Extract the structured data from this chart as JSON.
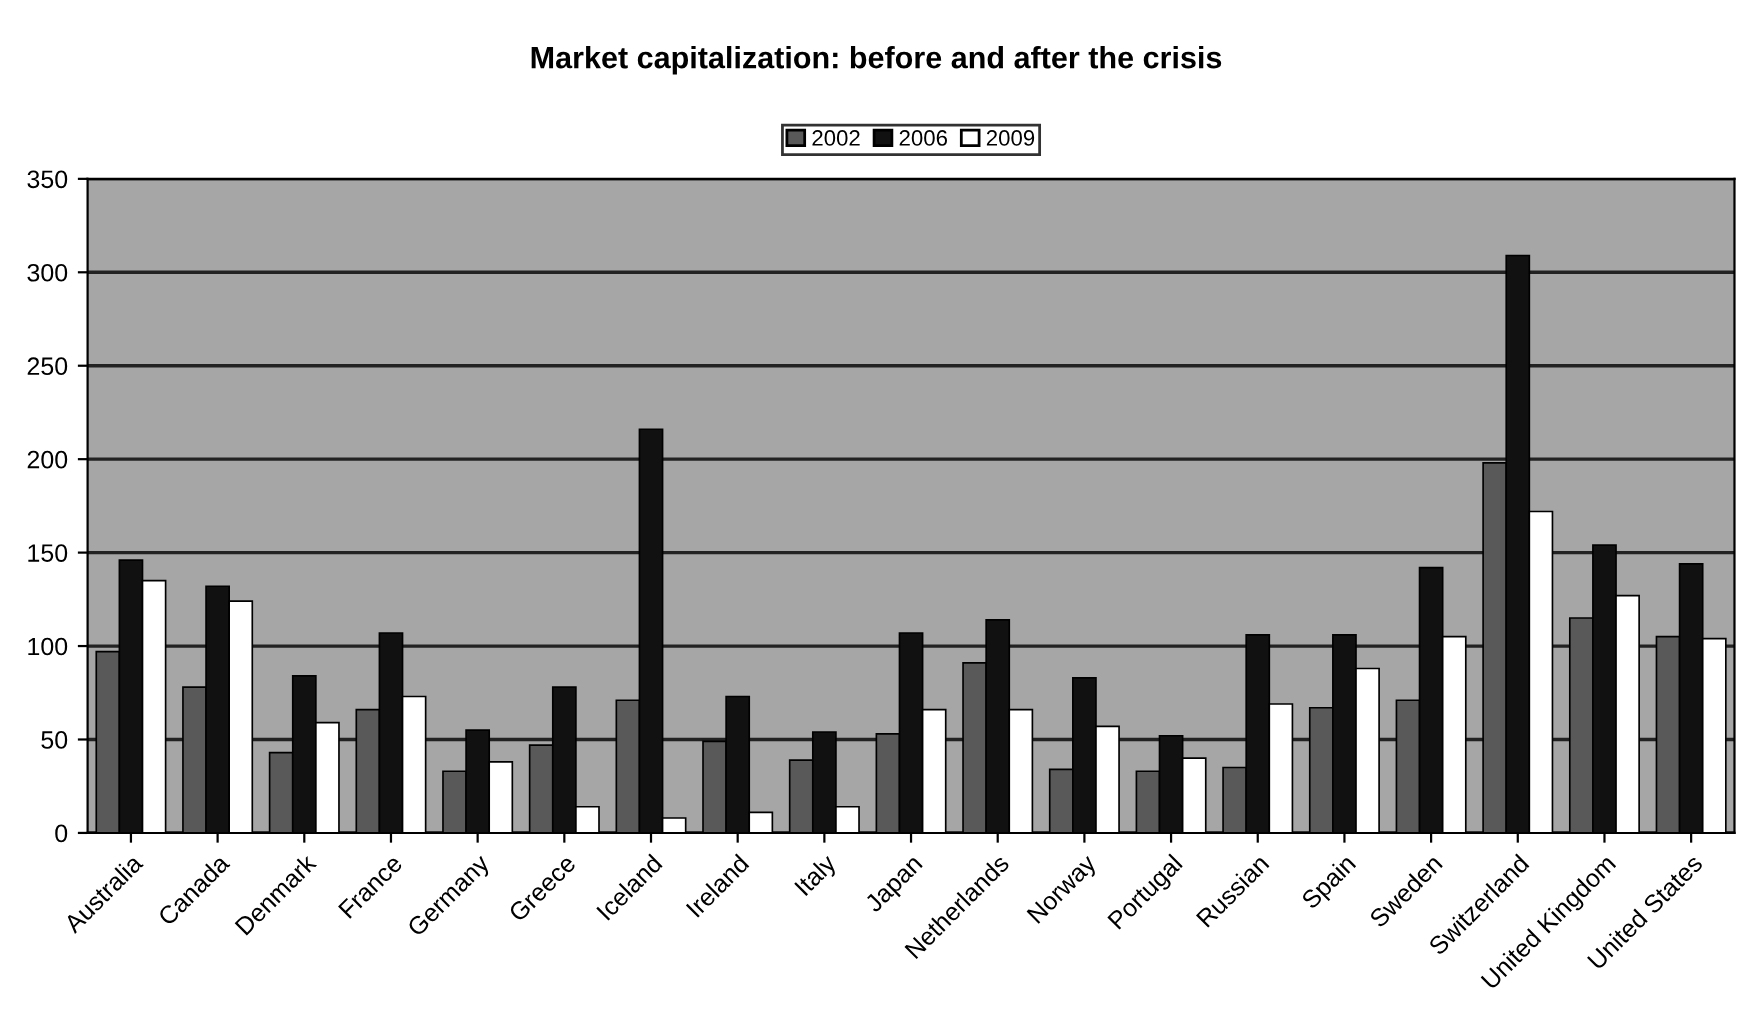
{
  "chart_data": {
    "type": "bar",
    "title": "Market capitalization: before and after the crisis",
    "categories": [
      "Australia",
      "Canada",
      "Denmark",
      "France",
      "Germany",
      "Greece",
      "Iceland",
      "Ireland",
      "Italy",
      "Japan",
      "Netherlands",
      "Norway",
      "Portugal",
      "Russian",
      "Spain",
      "Sweden",
      "Switzerland",
      "United Kingdom",
      "United States"
    ],
    "series": [
      {
        "name": "2002",
        "color": "#595959",
        "values": [
          97,
          78,
          43,
          66,
          33,
          47,
          71,
          49,
          39,
          53,
          91,
          34,
          33,
          35,
          67,
          71,
          198,
          115,
          105
        ]
      },
      {
        "name": "2006",
        "color": "#111111",
        "values": [
          146,
          132,
          84,
          107,
          55,
          78,
          216,
          73,
          54,
          107,
          114,
          83,
          52,
          106,
          106,
          142,
          309,
          154,
          144
        ]
      },
      {
        "name": "2009",
        "color": "#ffffff",
        "values": [
          135,
          124,
          59,
          73,
          38,
          14,
          8,
          11,
          14,
          66,
          66,
          57,
          40,
          69,
          88,
          105,
          172,
          127,
          104
        ]
      }
    ],
    "ylim": [
      0,
      350
    ],
    "yticks": [
      0,
      50,
      100,
      150,
      200,
      250,
      300,
      350
    ],
    "grid": "y",
    "legend": "top"
  }
}
